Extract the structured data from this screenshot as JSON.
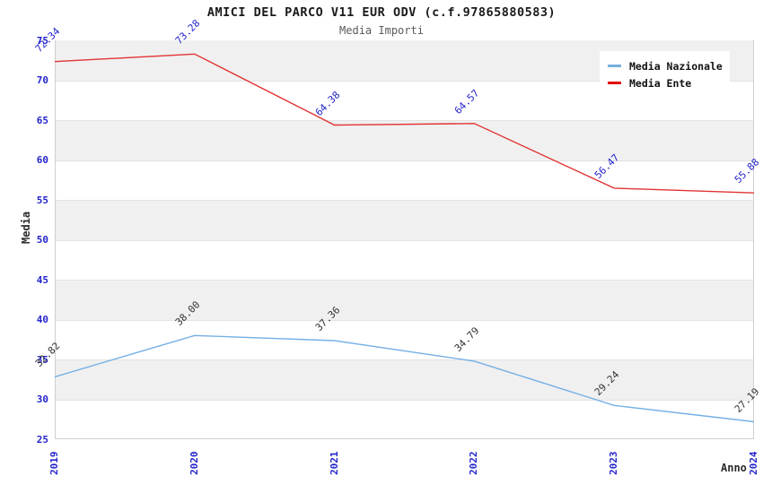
{
  "header": {
    "title": "AMICI DEL PARCO V11 EUR ODV (c.f.97865880583)",
    "subtitle": "Media Importi"
  },
  "axes": {
    "y_title": "Media",
    "x_title": "Anno",
    "y_ticks": [
      75,
      70,
      65,
      60,
      55,
      50,
      45,
      40,
      35,
      30,
      25
    ],
    "x_ticks": [
      "2019",
      "2020",
      "2021",
      "2022",
      "2023",
      "2024"
    ]
  },
  "legend": {
    "items": [
      {
        "label": "Media Nazionale",
        "color": "#76b0dd"
      },
      {
        "label": "Media Ente",
        "color": "#e30b0b"
      }
    ]
  },
  "colors": {
    "tick_text": "#2424cc",
    "band_gray": "#f0f0f0",
    "plot_border": "#cfcfcf",
    "nazionale_line": "#74b0e6",
    "ente_line": "#e23333",
    "nazionale_label_text": "#333333",
    "ente_label_text": "#2424cc"
  },
  "chart_data": {
    "type": "line",
    "title": "AMICI DEL PARCO V11 EUR ODV (c.f.97865880583)",
    "subtitle": "Media Importi",
    "xlabel": "Anno",
    "ylabel": "Media",
    "x": [
      2019,
      2020,
      2021,
      2022,
      2023,
      2024
    ],
    "series": [
      {
        "name": "Media Nazionale",
        "color": "#74b0e6",
        "label_color": "#333333",
        "values": [
          32.82,
          38.0,
          37.36,
          34.79,
          29.24,
          27.19
        ]
      },
      {
        "name": "Media Ente",
        "color": "#e23333",
        "label_color": "#2424cc",
        "values": [
          72.34,
          73.28,
          64.38,
          64.57,
          56.47,
          55.88
        ]
      }
    ],
    "ylim": [
      25,
      75
    ],
    "y_tick_step": 5,
    "grid": "horizontal-bands-alternating",
    "legend_position": "top-right",
    "point_labels": "values shown rotated 45 degrees at each point",
    "x_tick_rotation": 90
  }
}
